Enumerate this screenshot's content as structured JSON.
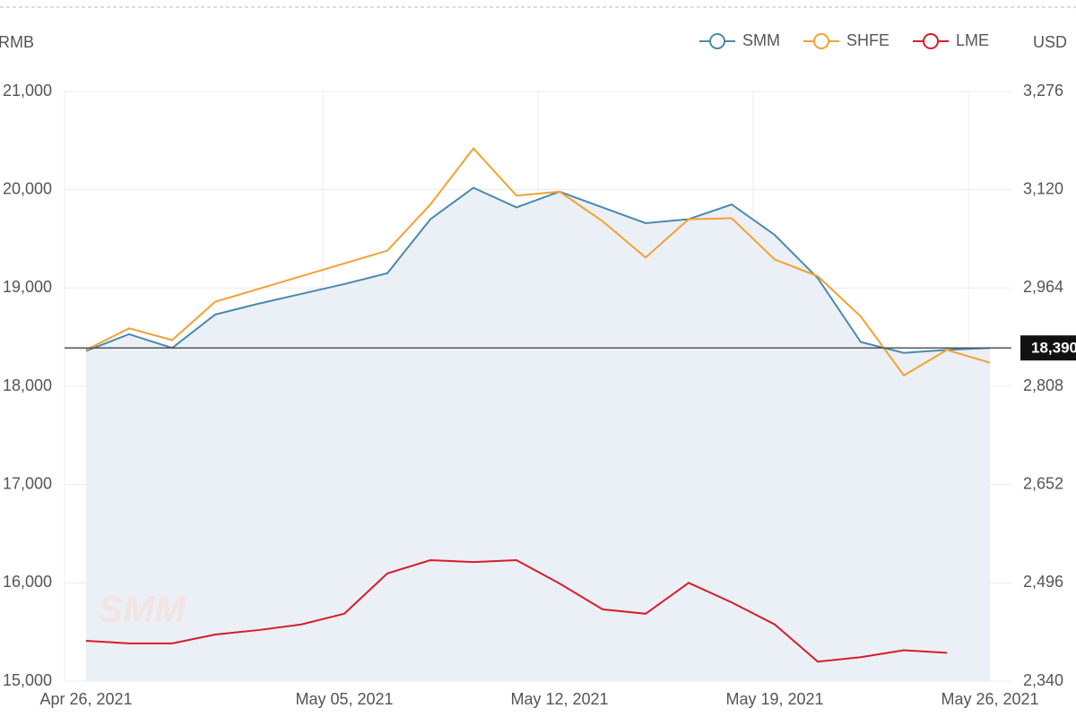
{
  "chart_data": {
    "type": "line",
    "y_axis_label": "RMB",
    "y2_axis_label": "USD",
    "watermark": "SMM",
    "categories": [
      "Apr 26, 2021",
      null,
      null,
      null,
      null,
      null,
      "May 05, 2021",
      null,
      null,
      null,
      null,
      "May 12, 2021",
      null,
      null,
      null,
      null,
      "May 19, 2021",
      null,
      null,
      null,
      null,
      "May 26, 2021"
    ],
    "series": [
      {
        "name": "SMM",
        "color": "#4a89ad",
        "area": true,
        "values": [
          18360,
          18530,
          18390,
          18730,
          18840,
          18940,
          19040,
          19150,
          19700,
          20020,
          19820,
          19980,
          19820,
          19660,
          19700,
          19850,
          19540,
          19100,
          18450,
          18340,
          18370,
          18390
        ]
      },
      {
        "name": "SHFE",
        "color": "#f5a031",
        "values": [
          18370,
          18590,
          18470,
          18860,
          18990,
          19120,
          19250,
          19380,
          19850,
          20420,
          19940,
          19980,
          19680,
          19310,
          19700,
          19710,
          19290,
          19120,
          18710,
          18110,
          18370,
          18240
        ]
      },
      {
        "name": "LME",
        "color": "#d81b2c",
        "axis": "y2",
        "values": [
          2404,
          2400,
          2400,
          2414,
          2421,
          2430,
          2447,
          2511,
          2532,
          2529,
          2532,
          2495,
          2454,
          2447,
          2496,
          2465,
          2430,
          2371,
          2378,
          2389,
          2385,
          null
        ]
      }
    ],
    "reference_line": {
      "value": 18390,
      "label": "18,390"
    },
    "ylim": [
      15000,
      21000
    ],
    "yticks": [
      {
        "value": 15000,
        "label": "15,000"
      },
      {
        "value": 16000,
        "label": "16,000"
      },
      {
        "value": 17000,
        "label": "17,000"
      },
      {
        "value": 18000,
        "label": "18,000"
      },
      {
        "value": 19000,
        "label": "19,000"
      },
      {
        "value": 20000,
        "label": "20,000"
      },
      {
        "value": 21000,
        "label": "21,000"
      }
    ],
    "y2lim": [
      2340,
      3276
    ],
    "y2ticks": [
      {
        "value": 2340,
        "label": "2,340"
      },
      {
        "value": 2496,
        "label": "2,496"
      },
      {
        "value": 2652,
        "label": "2,652"
      },
      {
        "value": 2808,
        "label": "2,808"
      },
      {
        "value": 2964,
        "label": "2,964"
      },
      {
        "value": 3120,
        "label": "3,120"
      },
      {
        "value": 3276,
        "label": "3,276"
      }
    ],
    "grid": true,
    "legend": "top-right"
  }
}
